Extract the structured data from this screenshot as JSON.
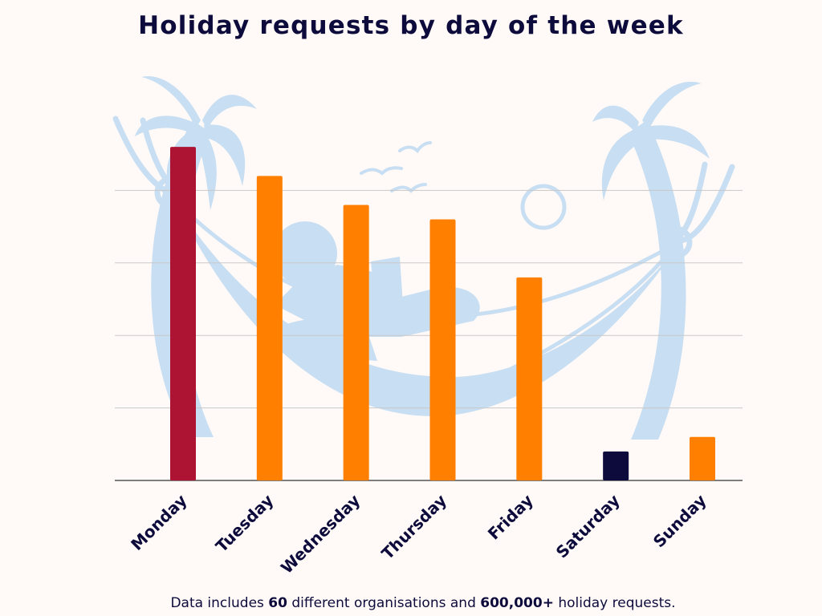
{
  "chart_data": {
    "type": "bar",
    "title": "Holiday requests by day of the week",
    "xlabel": "",
    "ylabel": "",
    "categories": [
      "Monday",
      "Tuesday",
      "Wednesday",
      "Thursday",
      "Friday",
      "Saturday",
      "Sunday"
    ],
    "values": [
      92,
      84,
      76,
      72,
      56,
      8,
      12
    ],
    "ylim": [
      0,
      100
    ],
    "yticks": [
      0,
      20,
      40,
      60,
      80,
      100
    ],
    "grid": true,
    "bar_colors": [
      "#ad1433",
      "#ff7f00",
      "#ff7f00",
      "#ff7f00",
      "#ff7f00",
      "#0d0b3b",
      "#ff7f00"
    ],
    "colors": {
      "background": "#fffaf7",
      "gridline": "#c8c8c8",
      "axis": "#555555",
      "illustration": "#c8def2",
      "text": "#0d0b3b"
    }
  },
  "footnote": {
    "prefix": "Data includes ",
    "orgs": "60",
    "middle": " different organisations and ",
    "requests": "600,000+",
    "suffix": " holiday requests."
  },
  "illustration": "palm-trees-hammock-illustration"
}
